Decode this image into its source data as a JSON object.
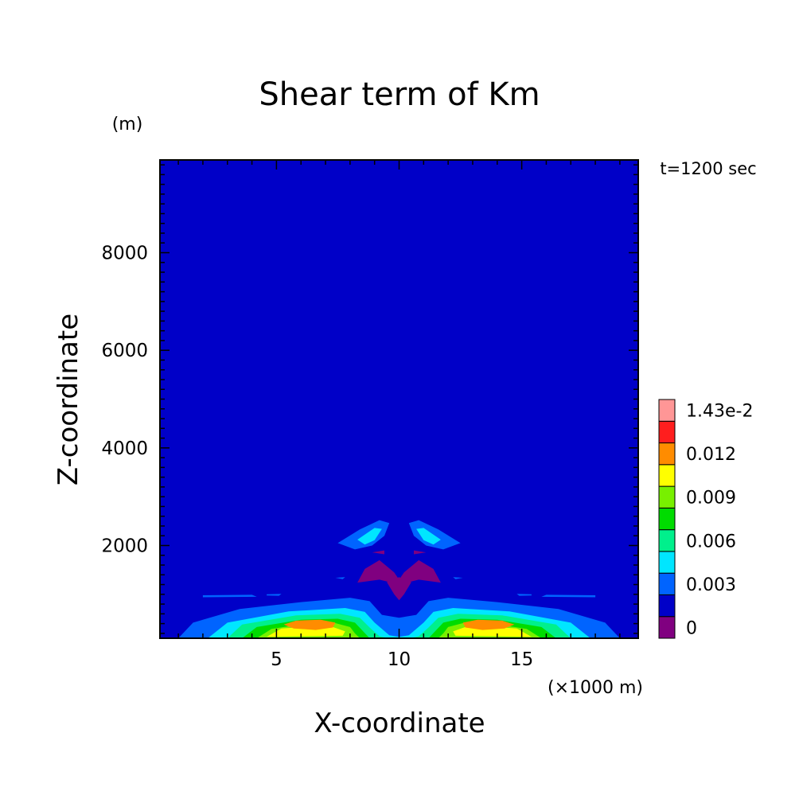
{
  "chart_data": {
    "type": "heatmap",
    "title": "Shear term of Km",
    "xlabel": "X-coordinate",
    "ylabel": "Z-coordinate",
    "x_unit": "(×1000 m)",
    "y_unit": "(m)",
    "time_label": "t=1200 sec",
    "xlim": [
      0.25,
      19.75
    ],
    "ylim": [
      100,
      9900
    ],
    "x_ticks": [
      5,
      10,
      15
    ],
    "y_ticks": [
      2000,
      4000,
      6000,
      8000
    ],
    "colorbar": {
      "levels": [
        0,
        0.0015,
        0.003,
        0.0045,
        0.006,
        0.0075,
        0.009,
        0.0105,
        0.012,
        0.0135,
        0.0143
      ],
      "colors": [
        "#800080",
        "#0000c8",
        "#0064ff",
        "#00e6ff",
        "#00f08c",
        "#00dc00",
        "#78f000",
        "#ffff00",
        "#ff8c00",
        "#ff1e1e",
        "#ff9696"
      ],
      "labels": [
        "0",
        "0.003",
        "0.006",
        "0.009",
        "0.012",
        "1.43e-2"
      ]
    },
    "background_value_range": [
      0,
      0.0015
    ],
    "features": [
      {
        "name": "surface maximum left",
        "x": 6.5,
        "z": 400,
        "value": 0.012
      },
      {
        "name": "surface maximum right",
        "x": 13.5,
        "z": 400,
        "value": 0.012
      },
      {
        "name": "upper lobe left",
        "x": 9.0,
        "z": 2250,
        "value": 0.0045
      },
      {
        "name": "upper lobe right",
        "x": 11.0,
        "z": 2250,
        "value": 0.0045
      },
      {
        "name": "negative region center",
        "x": 10.0,
        "z": 1400,
        "value": 0
      }
    ]
  }
}
